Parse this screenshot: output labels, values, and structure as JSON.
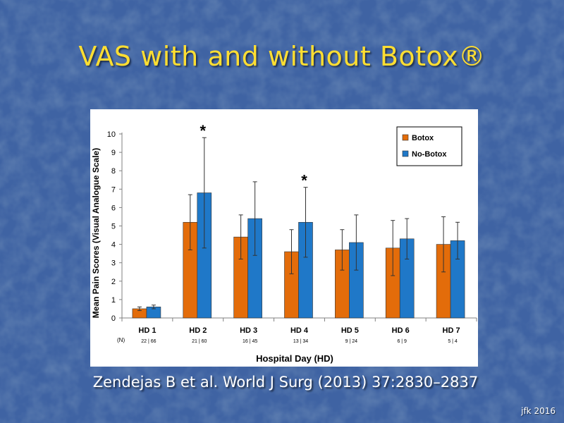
{
  "slide": {
    "title": "VAS with and without Botox®",
    "citation": "Zendejas B et al. World J Surg (2013) 37:2830–2837",
    "footer": "jfk 2016"
  },
  "colors": {
    "background": "#3f63a3",
    "title": "#ffde32",
    "botox": "#e36c0a",
    "no_botox": "#1f78c8"
  },
  "chart_data": {
    "type": "bar",
    "title": "",
    "xlabel": "Hospital Day (HD)",
    "ylabel": "Mean Pain Scores (Visual Analogue Scale)",
    "ylim": [
      0,
      10
    ],
    "yticks": [
      "0",
      "1",
      "2",
      "3",
      "4",
      "5",
      "6",
      "7",
      "8",
      "9",
      "10"
    ],
    "categories": [
      "HD 1",
      "HD 2",
      "HD 3",
      "HD 4",
      "HD 5",
      "HD 6",
      "HD 7"
    ],
    "n_label": "(N)",
    "n_values": [
      [
        "22",
        "66"
      ],
      [
        "21",
        "60"
      ],
      [
        "16",
        "45"
      ],
      [
        "13",
        "34"
      ],
      [
        "9",
        "24"
      ],
      [
        "6",
        "9"
      ],
      [
        "5",
        "4"
      ]
    ],
    "series": [
      {
        "name": "Botox",
        "color": "#e36c0a",
        "values": [
          0.5,
          5.2,
          4.4,
          3.6,
          3.7,
          3.8,
          4.0
        ],
        "error_low": [
          0.4,
          3.7,
          3.2,
          2.4,
          2.6,
          2.3,
          2.5
        ],
        "error_high": [
          0.6,
          6.7,
          5.6,
          4.8,
          4.8,
          5.3,
          5.5
        ]
      },
      {
        "name": "No-Botox",
        "color": "#1f78c8",
        "values": [
          0.6,
          6.8,
          5.4,
          5.2,
          4.1,
          4.3,
          4.2
        ],
        "error_low": [
          0.5,
          3.8,
          3.4,
          3.3,
          2.6,
          3.2,
          3.2
        ],
        "error_high": [
          0.7,
          9.8,
          7.4,
          7.1,
          5.6,
          5.4,
          5.2
        ]
      }
    ],
    "annotations": [
      {
        "category": "HD 2",
        "text": "*"
      },
      {
        "category": "HD 4",
        "text": "*"
      }
    ],
    "legend": {
      "placement": "top-right",
      "entries": [
        "Botox",
        "No-Botox"
      ]
    },
    "grid": false
  }
}
